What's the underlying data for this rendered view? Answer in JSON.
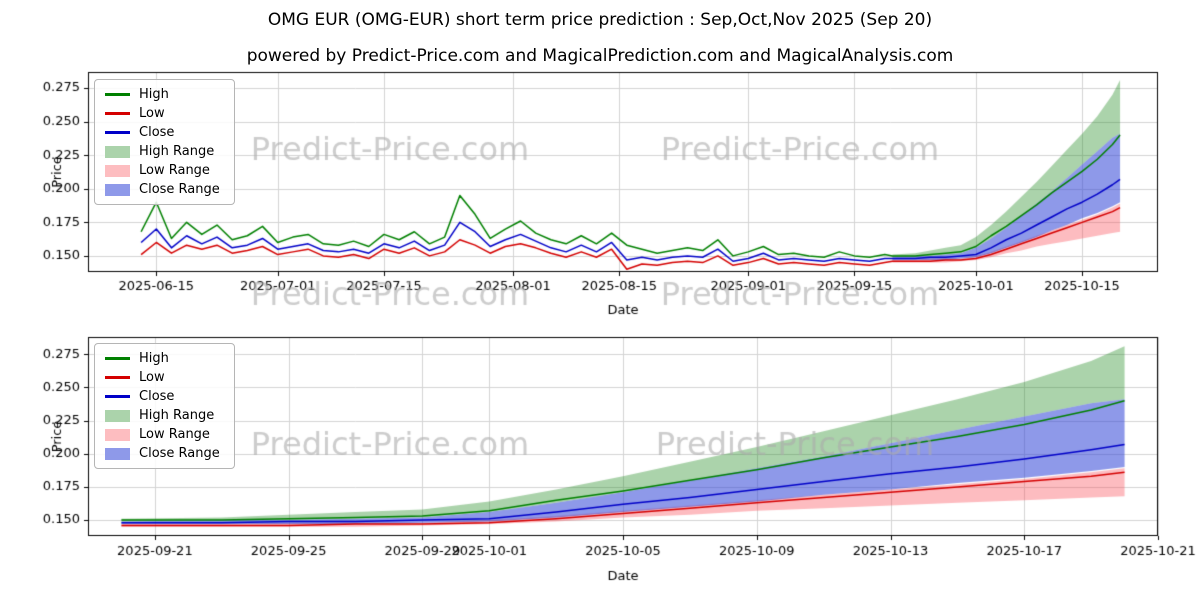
{
  "header": {
    "title": "OMG EUR (OMG-EUR) short term price prediction : Sep,Oct,Nov 2025 (Sep 20)",
    "subtitle": "powered by Predict-Price.com and MagicalPrediction.com and MagicalAnalysis.com"
  },
  "watermark": {
    "text": "Predict-Price.com",
    "color": "#ababab"
  },
  "legend": [
    {
      "label": "High",
      "type": "line",
      "color": "#008000"
    },
    {
      "label": "Low",
      "type": "line",
      "color": "#d40000"
    },
    {
      "label": "Close",
      "type": "line",
      "color": "#0000c8"
    },
    {
      "label": "High Range",
      "type": "patch",
      "color": "#abd3ab"
    },
    {
      "label": "Low Range",
      "type": "patch",
      "color": "#fdbdc0"
    },
    {
      "label": "Close Range",
      "type": "patch",
      "color": "#8e99e9"
    }
  ],
  "chart_data": [
    {
      "type": "line",
      "xlabel": "Date",
      "ylabel": "Price",
      "xlim": [
        "2025-06-06",
        "2025-10-25"
      ],
      "ylim": [
        0.138,
        0.287
      ],
      "x_ticks": [
        "2025-06-15",
        "2025-07-01",
        "2025-07-15",
        "2025-08-01",
        "2025-08-15",
        "2025-09-01",
        "2025-09-15",
        "2025-10-01",
        "2025-10-15"
      ],
      "y_ticks": [
        0.15,
        0.175,
        0.2,
        0.225,
        0.25,
        0.275
      ],
      "x_groups": {
        "hist": [
          "2025-06-13",
          "2025-06-15",
          "2025-06-17",
          "2025-06-19",
          "2025-06-21",
          "2025-06-23",
          "2025-06-25",
          "2025-06-27",
          "2025-06-29",
          "2025-07-01",
          "2025-07-03",
          "2025-07-05",
          "2025-07-07",
          "2025-07-09",
          "2025-07-11",
          "2025-07-13",
          "2025-07-15",
          "2025-07-17",
          "2025-07-19",
          "2025-07-21",
          "2025-07-23",
          "2025-07-25",
          "2025-07-27",
          "2025-07-29",
          "2025-07-31",
          "2025-08-02",
          "2025-08-04",
          "2025-08-06",
          "2025-08-08",
          "2025-08-10",
          "2025-08-12",
          "2025-08-14",
          "2025-08-16",
          "2025-08-18",
          "2025-08-20",
          "2025-08-22",
          "2025-08-24",
          "2025-08-26",
          "2025-08-28",
          "2025-08-30",
          "2025-09-01",
          "2025-09-03",
          "2025-09-05",
          "2025-09-07",
          "2025-09-09",
          "2025-09-11",
          "2025-09-13",
          "2025-09-15",
          "2025-09-17",
          "2025-09-19",
          "2025-09-20"
        ],
        "pred": [
          "2025-09-20",
          "2025-09-23",
          "2025-09-25",
          "2025-09-27",
          "2025-09-29",
          "2025-10-01",
          "2025-10-03",
          "2025-10-05",
          "2025-10-07",
          "2025-10-09",
          "2025-10-11",
          "2025-10-13",
          "2025-10-15",
          "2025-10-17",
          "2025-10-19",
          "2025-10-20"
        ]
      },
      "bands": [
        {
          "name": "High Range",
          "x_group": "pred",
          "color": "rgba(34,139,34,0.38)",
          "upper": [
            0.151,
            0.152,
            0.154,
            0.156,
            0.158,
            0.164,
            0.173,
            0.183,
            0.194,
            0.205,
            0.217,
            0.229,
            0.241,
            0.254,
            0.27,
            0.281
          ],
          "lower": [
            0.149,
            0.15,
            0.15,
            0.151,
            0.152,
            0.156,
            0.163,
            0.171,
            0.18,
            0.189,
            0.198,
            0.208,
            0.218,
            0.228,
            0.238,
            0.241
          ]
        },
        {
          "name": "Low Range",
          "x_group": "pred",
          "color": "rgba(250,80,90,0.38)",
          "upper": [
            0.147,
            0.147,
            0.148,
            0.148,
            0.148,
            0.15,
            0.153,
            0.157,
            0.161,
            0.165,
            0.169,
            0.173,
            0.177,
            0.181,
            0.186,
            0.189
          ],
          "lower": [
            0.145,
            0.145,
            0.145,
            0.145,
            0.146,
            0.147,
            0.149,
            0.152,
            0.154,
            0.157,
            0.159,
            0.161,
            0.163,
            0.165,
            0.167,
            0.168
          ]
        },
        {
          "name": "Close Range",
          "x_group": "pred",
          "color": "rgba(50,70,215,0.55)",
          "upper": [
            0.149,
            0.15,
            0.15,
            0.151,
            0.152,
            0.156,
            0.163,
            0.171,
            0.18,
            0.189,
            0.198,
            0.208,
            0.218,
            0.228,
            0.238,
            0.241
          ],
          "lower": [
            0.147,
            0.147,
            0.147,
            0.147,
            0.148,
            0.149,
            0.152,
            0.156,
            0.16,
            0.164,
            0.169,
            0.173,
            0.178,
            0.182,
            0.187,
            0.19
          ]
        }
      ],
      "series": [
        {
          "name": "High",
          "x_group": "hist+pred",
          "color": "#008000",
          "y": [
            0.168,
            0.19,
            0.163,
            0.175,
            0.166,
            0.173,
            0.162,
            0.165,
            0.172,
            0.16,
            0.164,
            0.166,
            0.159,
            0.158,
            0.161,
            0.157,
            0.166,
            0.162,
            0.168,
            0.159,
            0.164,
            0.195,
            0.181,
            0.163,
            0.17,
            0.176,
            0.167,
            0.162,
            0.159,
            0.165,
            0.159,
            0.167,
            0.158,
            0.155,
            0.152,
            0.154,
            0.156,
            0.154,
            0.162,
            0.15,
            0.153,
            0.157,
            0.151,
            0.152,
            0.15,
            0.149,
            0.153,
            0.15,
            0.149,
            0.151,
            0.15,
            0.15,
            0.15,
            0.151,
            0.152,
            0.153,
            0.157,
            0.165,
            0.172,
            0.18,
            0.188,
            0.197,
            0.205,
            0.213,
            0.222,
            0.233,
            0.24
          ]
        },
        {
          "name": "Low",
          "x_group": "hist+pred",
          "color": "#d40000",
          "y": [
            0.151,
            0.16,
            0.152,
            0.158,
            0.155,
            0.158,
            0.152,
            0.154,
            0.157,
            0.151,
            0.153,
            0.155,
            0.15,
            0.149,
            0.151,
            0.148,
            0.155,
            0.152,
            0.156,
            0.15,
            0.153,
            0.162,
            0.158,
            0.152,
            0.157,
            0.159,
            0.156,
            0.152,
            0.149,
            0.153,
            0.149,
            0.155,
            0.14,
            0.144,
            0.143,
            0.145,
            0.146,
            0.145,
            0.15,
            0.143,
            0.145,
            0.148,
            0.144,
            0.145,
            0.144,
            0.143,
            0.145,
            0.144,
            0.143,
            0.145,
            0.146,
            0.146,
            0.146,
            0.146,
            0.147,
            0.147,
            0.148,
            0.151,
            0.155,
            0.159,
            0.163,
            0.167,
            0.171,
            0.175,
            0.179,
            0.183,
            0.186
          ]
        },
        {
          "name": "Close",
          "x_group": "hist+pred",
          "color": "#0000c8",
          "y": [
            0.16,
            0.17,
            0.156,
            0.165,
            0.159,
            0.164,
            0.156,
            0.158,
            0.163,
            0.155,
            0.157,
            0.159,
            0.154,
            0.153,
            0.155,
            0.152,
            0.159,
            0.156,
            0.161,
            0.154,
            0.158,
            0.175,
            0.168,
            0.157,
            0.162,
            0.166,
            0.161,
            0.156,
            0.153,
            0.158,
            0.153,
            0.16,
            0.147,
            0.149,
            0.147,
            0.149,
            0.15,
            0.149,
            0.155,
            0.146,
            0.148,
            0.152,
            0.147,
            0.148,
            0.147,
            0.146,
            0.148,
            0.147,
            0.146,
            0.148,
            0.148,
            0.148,
            0.148,
            0.149,
            0.149,
            0.15,
            0.151,
            0.156,
            0.162,
            0.167,
            0.173,
            0.179,
            0.185,
            0.19,
            0.196,
            0.203,
            0.207
          ]
        }
      ]
    },
    {
      "type": "line",
      "xlabel": "Date",
      "ylabel": "Price",
      "xlim": [
        "2025-09-19",
        "2025-10-21"
      ],
      "ylim": [
        0.138,
        0.288
      ],
      "x_ticks": [
        "2025-09-21",
        "2025-09-25",
        "2025-09-29",
        "2025-10-01",
        "2025-10-05",
        "2025-10-09",
        "2025-10-13",
        "2025-10-17",
        "2025-10-21"
      ],
      "y_ticks": [
        0.15,
        0.175,
        0.2,
        0.225,
        0.25,
        0.275
      ],
      "x_groups": {
        "pred": [
          "2025-09-20",
          "2025-09-23",
          "2025-09-25",
          "2025-09-27",
          "2025-09-29",
          "2025-10-01",
          "2025-10-03",
          "2025-10-05",
          "2025-10-07",
          "2025-10-09",
          "2025-10-11",
          "2025-10-13",
          "2025-10-15",
          "2025-10-17",
          "2025-10-19",
          "2025-10-20"
        ]
      },
      "bands": [
        {
          "name": "High Range",
          "x_group": "pred",
          "color": "rgba(34,139,34,0.38)",
          "upper": [
            0.151,
            0.152,
            0.154,
            0.156,
            0.158,
            0.164,
            0.173,
            0.183,
            0.194,
            0.205,
            0.217,
            0.229,
            0.241,
            0.254,
            0.27,
            0.281
          ],
          "lower": [
            0.149,
            0.15,
            0.15,
            0.151,
            0.152,
            0.156,
            0.163,
            0.171,
            0.18,
            0.189,
            0.198,
            0.208,
            0.218,
            0.228,
            0.238,
            0.241
          ]
        },
        {
          "name": "Low Range",
          "x_group": "pred",
          "color": "rgba(250,80,90,0.38)",
          "upper": [
            0.147,
            0.147,
            0.148,
            0.148,
            0.148,
            0.15,
            0.153,
            0.157,
            0.161,
            0.165,
            0.169,
            0.173,
            0.177,
            0.181,
            0.186,
            0.189
          ],
          "lower": [
            0.145,
            0.145,
            0.145,
            0.145,
            0.146,
            0.147,
            0.149,
            0.152,
            0.154,
            0.157,
            0.159,
            0.161,
            0.163,
            0.165,
            0.167,
            0.168
          ]
        },
        {
          "name": "Close Range",
          "x_group": "pred",
          "color": "rgba(50,70,215,0.55)",
          "upper": [
            0.149,
            0.15,
            0.15,
            0.151,
            0.152,
            0.156,
            0.163,
            0.171,
            0.18,
            0.189,
            0.198,
            0.208,
            0.218,
            0.228,
            0.238,
            0.241
          ],
          "lower": [
            0.147,
            0.147,
            0.147,
            0.147,
            0.148,
            0.149,
            0.152,
            0.156,
            0.16,
            0.164,
            0.169,
            0.173,
            0.178,
            0.182,
            0.187,
            0.19
          ]
        }
      ],
      "series": [
        {
          "name": "High",
          "x_group": "pred",
          "color": "#008000",
          "y": [
            0.15,
            0.15,
            0.151,
            0.152,
            0.153,
            0.157,
            0.165,
            0.172,
            0.18,
            0.188,
            0.197,
            0.205,
            0.213,
            0.222,
            0.233,
            0.24
          ]
        },
        {
          "name": "Low",
          "x_group": "pred",
          "color": "#d40000",
          "y": [
            0.146,
            0.146,
            0.146,
            0.147,
            0.147,
            0.148,
            0.151,
            0.155,
            0.159,
            0.163,
            0.167,
            0.171,
            0.175,
            0.179,
            0.183,
            0.186
          ]
        },
        {
          "name": "Close",
          "x_group": "pred",
          "color": "#0000c8",
          "y": [
            0.148,
            0.148,
            0.149,
            0.149,
            0.15,
            0.151,
            0.156,
            0.162,
            0.167,
            0.173,
            0.179,
            0.185,
            0.19,
            0.196,
            0.203,
            0.207
          ]
        }
      ]
    }
  ]
}
